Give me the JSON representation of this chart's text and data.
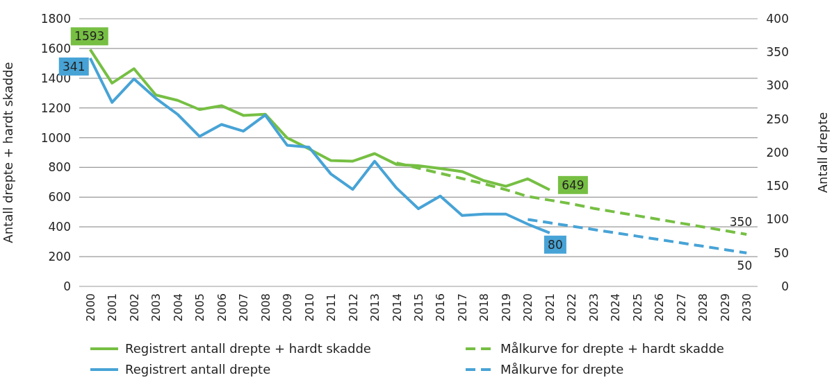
{
  "chart_data": {
    "type": "line",
    "categories": [
      "2000",
      "2001",
      "2002",
      "2003",
      "2004",
      "2005",
      "2006",
      "2007",
      "2008",
      "2009",
      "2010",
      "2011",
      "2012",
      "2013",
      "2014",
      "2015",
      "2016",
      "2017",
      "2018",
      "2019",
      "2020",
      "2021",
      "2022",
      "2023",
      "2024",
      "2025",
      "2026",
      "2027",
      "2028",
      "2029",
      "2030"
    ],
    "ylabel": "Antall drepte + hardt skadde",
    "y2label": "Antall drepte",
    "ylim": [
      0,
      1800
    ],
    "yticks": [
      0,
      200,
      400,
      600,
      800,
      1000,
      1200,
      1400,
      1600,
      1800
    ],
    "y2lim": [
      0,
      400
    ],
    "y2ticks": [
      0,
      50,
      100,
      150,
      200,
      250,
      300,
      350,
      400
    ],
    "grid": "y",
    "legend": "bottom",
    "marker": "none",
    "series": [
      {
        "name": "Registrert antall drepte + hardt skadde",
        "color": "#76bf43",
        "line_style": "solid",
        "values": [
          1593,
          1367,
          1464,
          1287,
          1251,
          1189,
          1215,
          1150,
          1158,
          999,
          925,
          846,
          842,
          893,
          820,
          811,
          793,
          772,
          711,
          673,
          723,
          649,
          null,
          null,
          null,
          null,
          null,
          null,
          null,
          null,
          null
        ],
        "value_labels": [
          "1593",
          null,
          null,
          null,
          null,
          null,
          null,
          null,
          null,
          null,
          null,
          null,
          null,
          null,
          null,
          null,
          null,
          null,
          null,
          null,
          null,
          "649",
          null,
          null,
          null,
          null,
          null,
          null,
          null,
          null,
          null
        ]
      },
      {
        "name": "Registrert antall drepte",
        "color": "#47a3d6",
        "line_style": "solid",
        "axis": "y2",
        "values": [
          341,
          275,
          310,
          281,
          257,
          224,
          242,
          232,
          256,
          211,
          208,
          168,
          145,
          187,
          147,
          116,
          135,
          106,
          108,
          108,
          93,
          80,
          null,
          null,
          null,
          null,
          null,
          null,
          null,
          null,
          null
        ],
        "value_labels": [
          "341",
          null,
          null,
          null,
          null,
          null,
          null,
          null,
          null,
          null,
          null,
          null,
          null,
          null,
          null,
          null,
          null,
          null,
          null,
          null,
          null,
          "80",
          null,
          null,
          null,
          null,
          null,
          null,
          null,
          null,
          null
        ]
      },
      {
        "name": "Målkurve for drepte + hardt skadde",
        "color": "#76bf43",
        "line_style": "dashed",
        "values": [
          null,
          null,
          null,
          null,
          null,
          null,
          null,
          null,
          null,
          null,
          null,
          null,
          null,
          null,
          830,
          795,
          760,
          725,
          690,
          650,
          605,
          580,
          555,
          525,
          500,
          475,
          450,
          425,
          400,
          375,
          350
        ],
        "value_labels": [
          null,
          null,
          null,
          null,
          null,
          null,
          null,
          null,
          null,
          null,
          null,
          null,
          null,
          null,
          null,
          null,
          null,
          null,
          null,
          null,
          null,
          null,
          null,
          null,
          null,
          null,
          null,
          null,
          null,
          null,
          "350"
        ]
      },
      {
        "name": "Målkurve for drepte",
        "color": "#47a3d6",
        "line_style": "dashed",
        "axis": "y2",
        "values": [
          null,
          null,
          null,
          null,
          null,
          null,
          null,
          null,
          null,
          null,
          null,
          null,
          null,
          null,
          null,
          null,
          null,
          null,
          null,
          null,
          100,
          95,
          90,
          85,
          80,
          75,
          70,
          65,
          60,
          55,
          50
        ],
        "value_labels": [
          null,
          null,
          null,
          null,
          null,
          null,
          null,
          null,
          null,
          null,
          null,
          null,
          null,
          null,
          null,
          null,
          null,
          null,
          null,
          null,
          null,
          null,
          null,
          null,
          null,
          null,
          null,
          null,
          null,
          null,
          "50"
        ]
      }
    ]
  }
}
